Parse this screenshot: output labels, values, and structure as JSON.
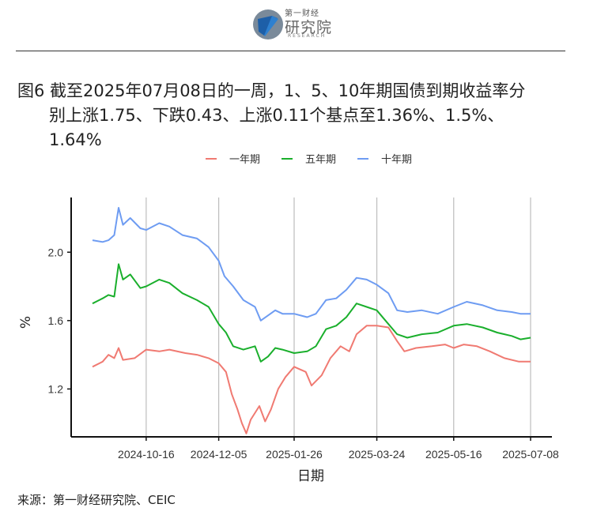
{
  "header": {
    "logo_brand": "第一财经",
    "logo_name": "研究院",
    "logo_sub": "RESEARCH"
  },
  "figure": {
    "title_line1": "图6  截至2025年07月08日的一周，1、5、10年期国债到期收益率分",
    "title_line2": "别上涨1.75、下跌0.43、上涨0.11个基点至1.36%、1.5%、",
    "title_line3": "1.64%",
    "source": "来源：第一财经研究院、CEIC"
  },
  "chart_data": {
    "type": "line",
    "xlabel": "日期",
    "ylabel": "%",
    "ylim": [
      0.92,
      2.32
    ],
    "yticks": [
      "1.2",
      "1.6",
      "2.0"
    ],
    "ytick_values": [
      1.2,
      1.6,
      2.0
    ],
    "x_start": "2024-09-09",
    "x_end": "2025-07-08",
    "xticks": [
      "2024-10-16",
      "2024-12-05",
      "2025-01-26",
      "2025-03-24",
      "2025-05-16",
      "2025-07-08"
    ],
    "grid": "vertical",
    "legend_position": "top",
    "series": [
      {
        "name": "一年期",
        "color": "#F07A72",
        "points": [
          [
            "2024-09-09",
            1.33
          ],
          [
            "2024-09-16",
            1.36
          ],
          [
            "2024-09-20",
            1.4
          ],
          [
            "2024-09-24",
            1.38
          ],
          [
            "2024-09-27",
            1.44
          ],
          [
            "2024-09-30",
            1.37
          ],
          [
            "2024-10-08",
            1.38
          ],
          [
            "2024-10-16",
            1.43
          ],
          [
            "2024-10-25",
            1.42
          ],
          [
            "2024-11-01",
            1.43
          ],
          [
            "2024-11-12",
            1.41
          ],
          [
            "2024-11-20",
            1.4
          ],
          [
            "2024-11-28",
            1.38
          ],
          [
            "2024-12-05",
            1.35
          ],
          [
            "2024-12-10",
            1.3
          ],
          [
            "2024-12-14",
            1.17
          ],
          [
            "2024-12-18",
            1.08
          ],
          [
            "2024-12-21",
            1.0
          ],
          [
            "2024-12-24",
            0.94
          ],
          [
            "2024-12-27",
            1.02
          ],
          [
            "2025-01-02",
            1.1
          ],
          [
            "2025-01-06",
            1.01
          ],
          [
            "2025-01-10",
            1.08
          ],
          [
            "2025-01-15",
            1.2
          ],
          [
            "2025-01-20",
            1.27
          ],
          [
            "2025-01-26",
            1.33
          ],
          [
            "2025-02-03",
            1.3
          ],
          [
            "2025-02-07",
            1.22
          ],
          [
            "2025-02-14",
            1.28
          ],
          [
            "2025-02-20",
            1.38
          ],
          [
            "2025-02-27",
            1.45
          ],
          [
            "2025-03-05",
            1.42
          ],
          [
            "2025-03-10",
            1.52
          ],
          [
            "2025-03-17",
            1.57
          ],
          [
            "2025-03-24",
            1.57
          ],
          [
            "2025-04-01",
            1.56
          ],
          [
            "2025-04-07",
            1.48
          ],
          [
            "2025-04-12",
            1.42
          ],
          [
            "2025-04-20",
            1.44
          ],
          [
            "2025-05-01",
            1.45
          ],
          [
            "2025-05-10",
            1.46
          ],
          [
            "2025-05-16",
            1.44
          ],
          [
            "2025-05-23",
            1.46
          ],
          [
            "2025-06-01",
            1.45
          ],
          [
            "2025-06-10",
            1.42
          ],
          [
            "2025-06-20",
            1.38
          ],
          [
            "2025-06-30",
            1.36
          ],
          [
            "2025-07-08",
            1.36
          ]
        ]
      },
      {
        "name": "五年期",
        "color": "#1AAF2C",
        "points": [
          [
            "2024-09-09",
            1.7
          ],
          [
            "2024-09-16",
            1.73
          ],
          [
            "2024-09-20",
            1.75
          ],
          [
            "2024-09-24",
            1.74
          ],
          [
            "2024-09-27",
            1.93
          ],
          [
            "2024-09-30",
            1.84
          ],
          [
            "2024-10-05",
            1.87
          ],
          [
            "2024-10-12",
            1.79
          ],
          [
            "2024-10-16",
            1.8
          ],
          [
            "2024-10-25",
            1.84
          ],
          [
            "2024-11-01",
            1.82
          ],
          [
            "2024-11-10",
            1.76
          ],
          [
            "2024-11-20",
            1.72
          ],
          [
            "2024-11-28",
            1.68
          ],
          [
            "2024-12-05",
            1.58
          ],
          [
            "2024-12-10",
            1.53
          ],
          [
            "2024-12-15",
            1.45
          ],
          [
            "2024-12-22",
            1.43
          ],
          [
            "2024-12-30",
            1.45
          ],
          [
            "2025-01-03",
            1.36
          ],
          [
            "2025-01-08",
            1.39
          ],
          [
            "2025-01-13",
            1.44
          ],
          [
            "2025-01-18",
            1.43
          ],
          [
            "2025-01-26",
            1.41
          ],
          [
            "2025-02-04",
            1.42
          ],
          [
            "2025-02-10",
            1.45
          ],
          [
            "2025-02-17",
            1.55
          ],
          [
            "2025-02-24",
            1.57
          ],
          [
            "2025-03-03",
            1.62
          ],
          [
            "2025-03-10",
            1.7
          ],
          [
            "2025-03-17",
            1.68
          ],
          [
            "2025-03-24",
            1.66
          ],
          [
            "2025-04-01",
            1.58
          ],
          [
            "2025-04-07",
            1.52
          ],
          [
            "2025-04-14",
            1.5
          ],
          [
            "2025-04-24",
            1.52
          ],
          [
            "2025-05-05",
            1.53
          ],
          [
            "2025-05-16",
            1.57
          ],
          [
            "2025-05-25",
            1.58
          ],
          [
            "2025-06-05",
            1.56
          ],
          [
            "2025-06-15",
            1.53
          ],
          [
            "2025-06-25",
            1.51
          ],
          [
            "2025-07-01",
            1.49
          ],
          [
            "2025-07-08",
            1.5
          ]
        ]
      },
      {
        "name": "十年期",
        "color": "#6E9CF2",
        "points": [
          [
            "2024-09-09",
            2.07
          ],
          [
            "2024-09-16",
            2.06
          ],
          [
            "2024-09-20",
            2.07
          ],
          [
            "2024-09-24",
            2.1
          ],
          [
            "2024-09-27",
            2.26
          ],
          [
            "2024-09-30",
            2.16
          ],
          [
            "2024-10-05",
            2.2
          ],
          [
            "2024-10-12",
            2.14
          ],
          [
            "2024-10-16",
            2.13
          ],
          [
            "2024-10-25",
            2.17
          ],
          [
            "2024-11-01",
            2.15
          ],
          [
            "2024-11-10",
            2.1
          ],
          [
            "2024-11-20",
            2.08
          ],
          [
            "2024-11-28",
            2.03
          ],
          [
            "2024-12-05",
            1.95
          ],
          [
            "2024-12-09",
            1.86
          ],
          [
            "2024-12-15",
            1.8
          ],
          [
            "2024-12-22",
            1.72
          ],
          [
            "2024-12-30",
            1.68
          ],
          [
            "2025-01-03",
            1.6
          ],
          [
            "2025-01-08",
            1.63
          ],
          [
            "2025-01-13",
            1.66
          ],
          [
            "2025-01-18",
            1.64
          ],
          [
            "2025-01-26",
            1.64
          ],
          [
            "2025-02-04",
            1.62
          ],
          [
            "2025-02-10",
            1.64
          ],
          [
            "2025-02-17",
            1.72
          ],
          [
            "2025-02-24",
            1.73
          ],
          [
            "2025-03-03",
            1.78
          ],
          [
            "2025-03-10",
            1.85
          ],
          [
            "2025-03-17",
            1.84
          ],
          [
            "2025-03-24",
            1.81
          ],
          [
            "2025-04-01",
            1.76
          ],
          [
            "2025-04-07",
            1.66
          ],
          [
            "2025-04-14",
            1.65
          ],
          [
            "2025-04-24",
            1.66
          ],
          [
            "2025-05-05",
            1.64
          ],
          [
            "2025-05-16",
            1.68
          ],
          [
            "2025-05-25",
            1.71
          ],
          [
            "2025-06-05",
            1.69
          ],
          [
            "2025-06-15",
            1.66
          ],
          [
            "2025-06-25",
            1.65
          ],
          [
            "2025-07-01",
            1.64
          ],
          [
            "2025-07-08",
            1.64
          ]
        ]
      }
    ]
  }
}
